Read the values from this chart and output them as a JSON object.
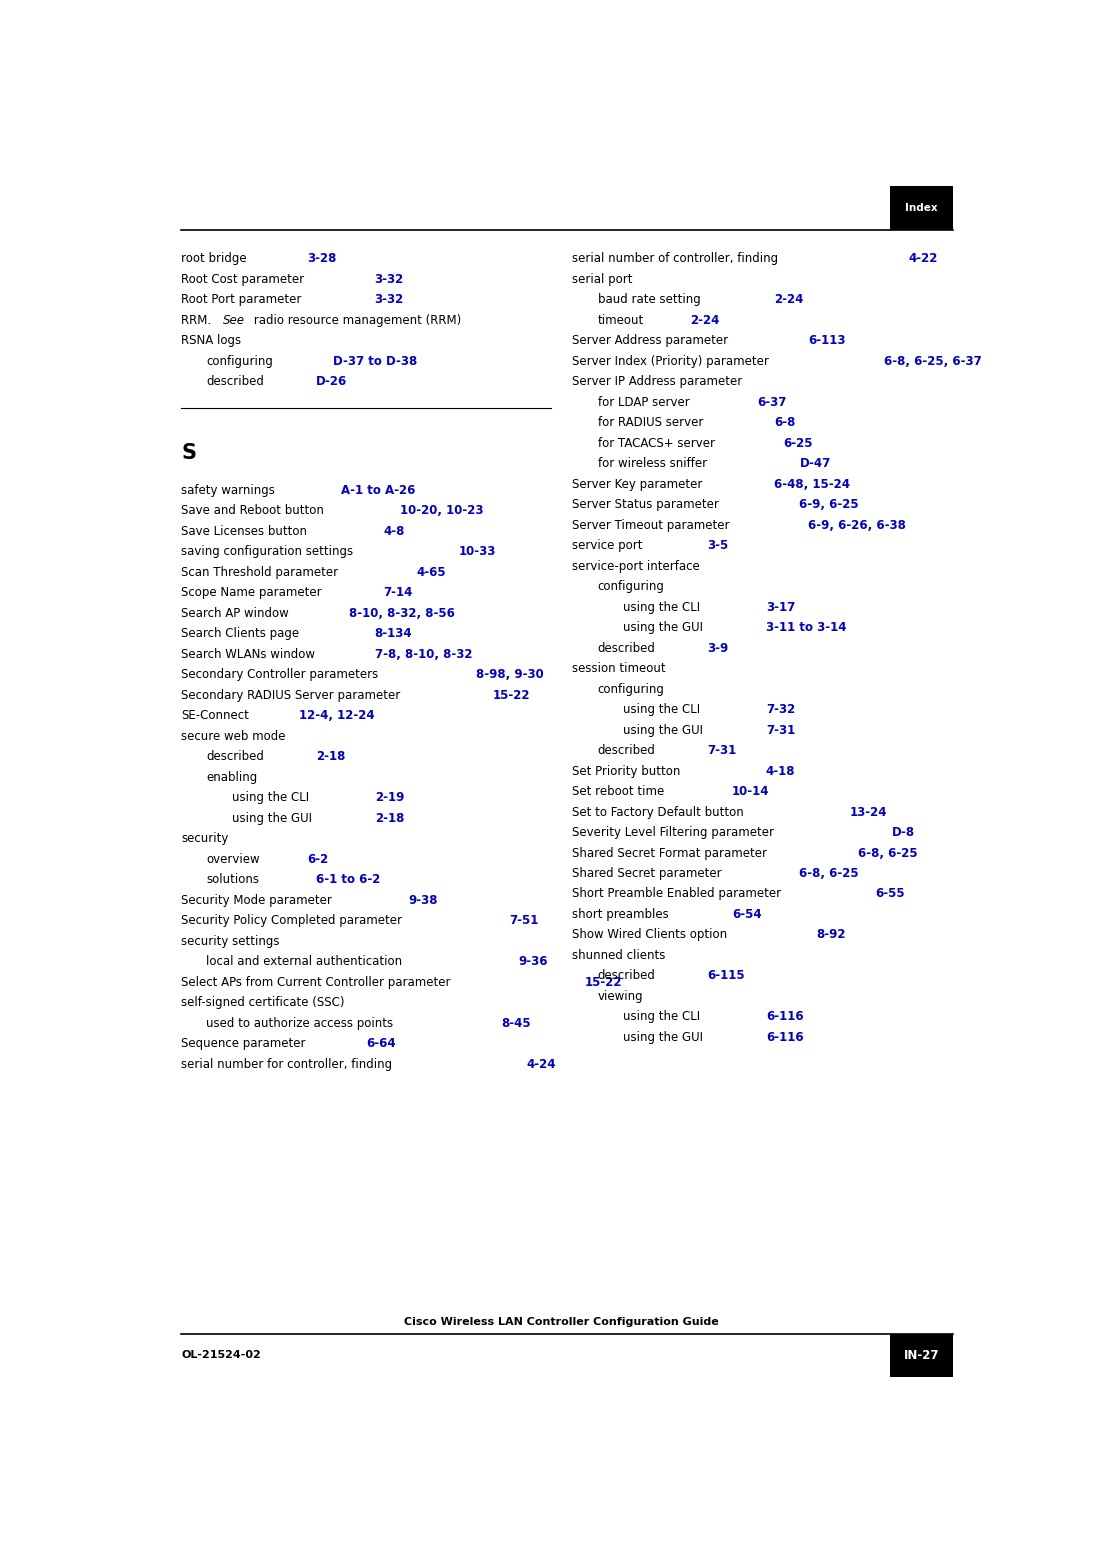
{
  "page_width": 10.95,
  "page_height": 15.47,
  "background_color": "#ffffff",
  "text_color": "#000000",
  "link_color": "#0000cc",
  "header_text": "Index",
  "footer_left": "OL-21524-02",
  "footer_right": "IN-27",
  "footer_center": "Cisco Wireless LAN Controller Configuration Guide",
  "left_column": [
    {
      "text": "root bridge",
      "page": "3-28",
      "indent": 0,
      "rrm": false
    },
    {
      "text": "Root Cost parameter",
      "page": "3-32",
      "indent": 0,
      "rrm": false
    },
    {
      "text": "Root Port parameter",
      "page": "3-32",
      "indent": 0,
      "rrm": false
    },
    {
      "text": "RRM_SEE",
      "page": "",
      "indent": 0,
      "rrm": true
    },
    {
      "text": "RSNA logs",
      "page": "",
      "indent": 0,
      "rrm": false
    },
    {
      "text": "configuring",
      "page": "D-37 to D-38",
      "indent": 1,
      "rrm": false
    },
    {
      "text": "described",
      "page": "D-26",
      "indent": 1,
      "rrm": false
    },
    {
      "type": "section",
      "letter": "S"
    },
    {
      "text": "safety warnings",
      "page": "A-1 to A-26",
      "indent": 0,
      "rrm": false
    },
    {
      "text": "Save and Reboot button",
      "page": "10-20, 10-23",
      "indent": 0,
      "rrm": false
    },
    {
      "text": "Save Licenses button",
      "page": "4-8",
      "indent": 0,
      "rrm": false
    },
    {
      "text": "saving configuration settings",
      "page": "10-33",
      "indent": 0,
      "rrm": false
    },
    {
      "text": "Scan Threshold parameter",
      "page": "4-65",
      "indent": 0,
      "rrm": false
    },
    {
      "text": "Scope Name parameter",
      "page": "7-14",
      "indent": 0,
      "rrm": false
    },
    {
      "text": "Search AP window",
      "page": "8-10, 8-32, 8-56",
      "indent": 0,
      "rrm": false
    },
    {
      "text": "Search Clients page",
      "page": "8-134",
      "indent": 0,
      "rrm": false
    },
    {
      "text": "Search WLANs window",
      "page": "7-8, 8-10, 8-32",
      "indent": 0,
      "rrm": false
    },
    {
      "text": "Secondary Controller parameters",
      "page": "8-98, 9-30",
      "indent": 0,
      "rrm": false
    },
    {
      "text": "Secondary RADIUS Server parameter",
      "page": "15-22",
      "indent": 0,
      "rrm": false
    },
    {
      "text": "SE-Connect",
      "page": "12-4, 12-24",
      "indent": 0,
      "rrm": false
    },
    {
      "text": "secure web mode",
      "page": "",
      "indent": 0,
      "rrm": false
    },
    {
      "text": "described",
      "page": "2-18",
      "indent": 1,
      "rrm": false
    },
    {
      "text": "enabling",
      "page": "",
      "indent": 1,
      "rrm": false
    },
    {
      "text": "using the CLI",
      "page": "2-19",
      "indent": 2,
      "rrm": false
    },
    {
      "text": "using the GUI",
      "page": "2-18",
      "indent": 2,
      "rrm": false
    },
    {
      "text": "security",
      "page": "",
      "indent": 0,
      "rrm": false
    },
    {
      "text": "overview",
      "page": "6-2",
      "indent": 1,
      "rrm": false
    },
    {
      "text": "solutions",
      "page": "6-1 to 6-2",
      "indent": 1,
      "rrm": false
    },
    {
      "text": "Security Mode parameter",
      "page": "9-38",
      "indent": 0,
      "rrm": false
    },
    {
      "text": "Security Policy Completed parameter",
      "page": "7-51",
      "indent": 0,
      "rrm": false
    },
    {
      "text": "security settings",
      "page": "",
      "indent": 0,
      "rrm": false
    },
    {
      "text": "local and external authentication",
      "page": "9-36",
      "indent": 1,
      "rrm": false
    },
    {
      "text": "Select APs from Current Controller parameter",
      "page": "15-22",
      "indent": 0,
      "rrm": false
    },
    {
      "text": "self-signed certificate (SSC)",
      "page": "",
      "indent": 0,
      "rrm": false
    },
    {
      "text": "used to authorize access points",
      "page": "8-45",
      "indent": 1,
      "rrm": false
    },
    {
      "text": "Sequence parameter",
      "page": "6-64",
      "indent": 0,
      "rrm": false
    },
    {
      "text": "serial number for controller, finding",
      "page": "4-24",
      "indent": 0,
      "rrm": false
    }
  ],
  "right_column": [
    {
      "text": "serial number of controller, finding",
      "page": "4-22",
      "indent": 0
    },
    {
      "text": "serial port",
      "page": "",
      "indent": 0
    },
    {
      "text": "baud rate setting",
      "page": "2-24",
      "indent": 1
    },
    {
      "text": "timeout",
      "page": "2-24",
      "indent": 1
    },
    {
      "text": "Server Address parameter",
      "page": "6-113",
      "indent": 0
    },
    {
      "text": "Server Index (Priority) parameter",
      "page": "6-8, 6-25, 6-37",
      "indent": 0
    },
    {
      "text": "Server IP Address parameter",
      "page": "",
      "indent": 0
    },
    {
      "text": "for LDAP server",
      "page": "6-37",
      "indent": 1
    },
    {
      "text": "for RADIUS server",
      "page": "6-8",
      "indent": 1
    },
    {
      "text": "for TACACS+ server",
      "page": "6-25",
      "indent": 1
    },
    {
      "text": "for wireless sniffer",
      "page": "D-47",
      "indent": 1
    },
    {
      "text": "Server Key parameter",
      "page": "6-48, 15-24",
      "indent": 0
    },
    {
      "text": "Server Status parameter",
      "page": "6-9, 6-25",
      "indent": 0
    },
    {
      "text": "Server Timeout parameter",
      "page": "6-9, 6-26, 6-38",
      "indent": 0
    },
    {
      "text": "service port",
      "page": "3-5",
      "indent": 0
    },
    {
      "text": "service-port interface",
      "page": "",
      "indent": 0
    },
    {
      "text": "configuring",
      "page": "",
      "indent": 1
    },
    {
      "text": "using the CLI",
      "page": "3-17",
      "indent": 2
    },
    {
      "text": "using the GUI",
      "page": "3-11 to 3-14",
      "indent": 2
    },
    {
      "text": "described",
      "page": "3-9",
      "indent": 1
    },
    {
      "text": "session timeout",
      "page": "",
      "indent": 0
    },
    {
      "text": "configuring",
      "page": "",
      "indent": 1
    },
    {
      "text": "using the CLI",
      "page": "7-32",
      "indent": 2
    },
    {
      "text": "using the GUI",
      "page": "7-31",
      "indent": 2
    },
    {
      "text": "described",
      "page": "7-31",
      "indent": 1
    },
    {
      "text": "Set Priority button",
      "page": "4-18",
      "indent": 0
    },
    {
      "text": "Set reboot time",
      "page": "10-14",
      "indent": 0
    },
    {
      "text": "Set to Factory Default button",
      "page": "13-24",
      "indent": 0
    },
    {
      "text": "Severity Level Filtering parameter",
      "page": "D-8",
      "indent": 0
    },
    {
      "text": "Shared Secret Format parameter",
      "page": "6-8, 6-25",
      "indent": 0
    },
    {
      "text": "Shared Secret parameter",
      "page": "6-8, 6-25",
      "indent": 0
    },
    {
      "text": "Short Preamble Enabled parameter",
      "page": "6-55",
      "indent": 0
    },
    {
      "text": "short preambles",
      "page": "6-54",
      "indent": 0
    },
    {
      "text": "Show Wired Clients option",
      "page": "8-92",
      "indent": 0
    },
    {
      "text": "shunned clients",
      "page": "",
      "indent": 0
    },
    {
      "text": "described",
      "page": "6-115",
      "indent": 1
    },
    {
      "text": "viewing",
      "page": "",
      "indent": 1
    },
    {
      "text": "using the CLI",
      "page": "6-116",
      "indent": 2
    },
    {
      "text": "using the GUI",
      "page": "6-116",
      "indent": 2
    }
  ]
}
